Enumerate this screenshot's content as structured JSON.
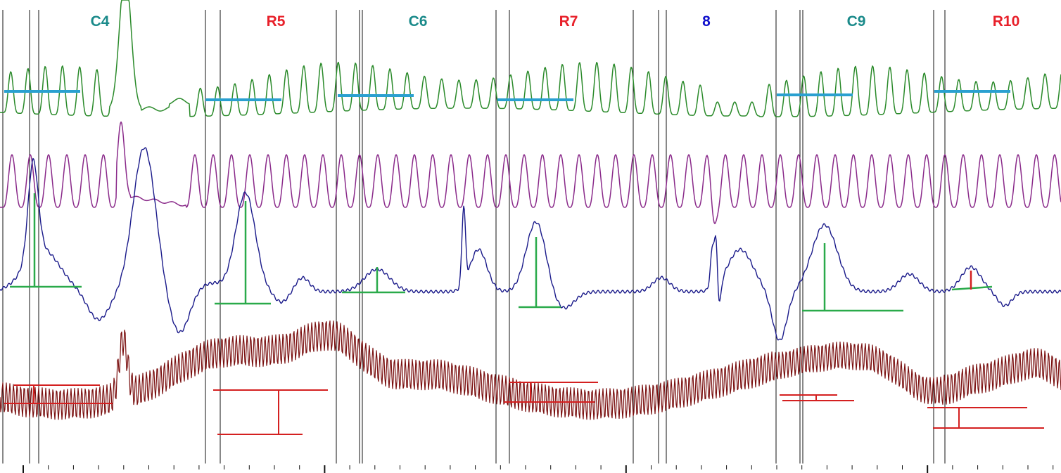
{
  "chart_data": {
    "type": "line",
    "segments": [
      {
        "label": "C4",
        "color": "#1a8a8a"
      },
      {
        "label": "R5",
        "color": "#e8202a"
      },
      {
        "label": "C6",
        "color": "#1a8a8a"
      },
      {
        "label": "R7",
        "color": "#e8202a"
      },
      {
        "label": "8",
        "color": "#1010cc"
      },
      {
        "label": "C9",
        "color": "#1a8a8a"
      },
      {
        "label": "R10",
        "color": "#e8202a"
      }
    ],
    "series": [
      {
        "color": "#2a8a2a"
      },
      {
        "color": "#8a2a8a"
      },
      {
        "color": "#1a1a8a"
      },
      {
        "color": "#7a1010"
      }
    ],
    "marker_colors": {
      "baseline": "#2aa0d0",
      "peak": "#2aaa4a",
      "pressure": "#d42020"
    }
  }
}
